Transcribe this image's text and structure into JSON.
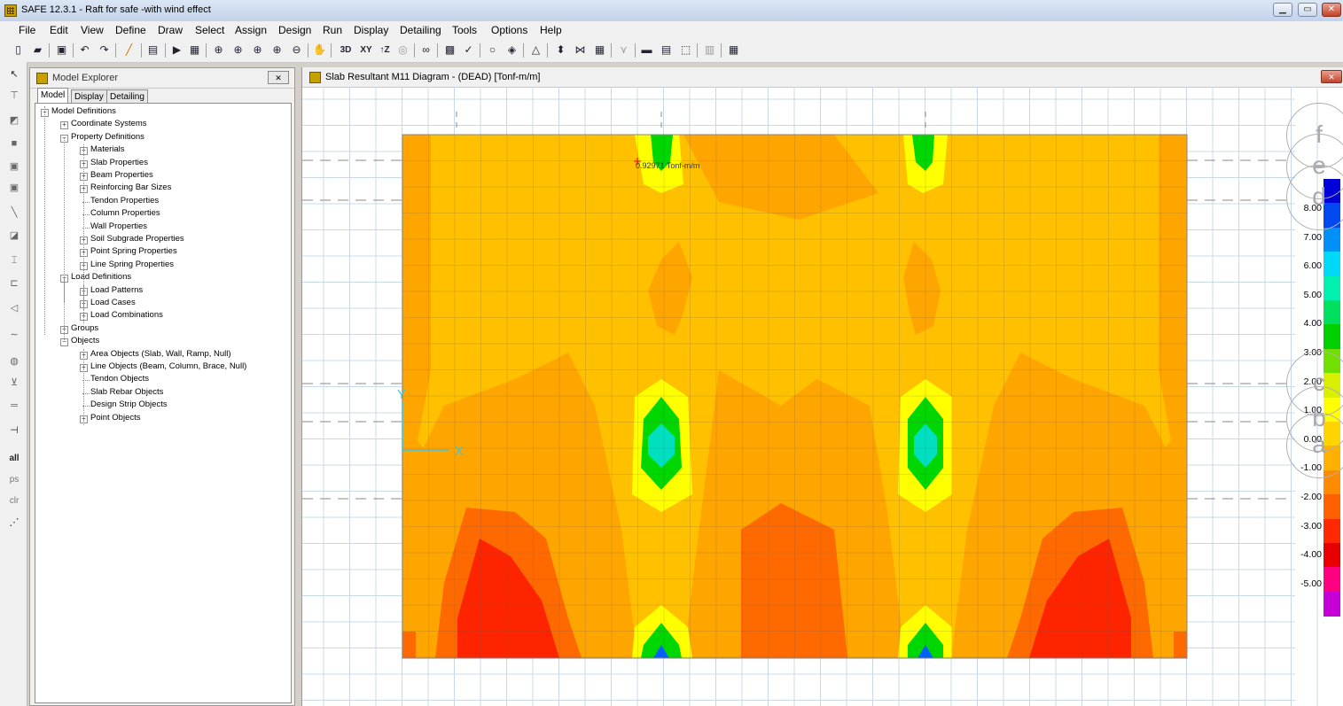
{
  "window": {
    "title": "SAFE 12.3.1 - Raft for safe -with wind effect",
    "minimize": "▁",
    "restore": "▭",
    "close": "✕"
  },
  "menu": [
    "File",
    "Edit",
    "View",
    "Define",
    "Draw",
    "Select",
    "Assign",
    "Design",
    "Run",
    "Display",
    "Detailing",
    "Tools",
    "Options",
    "Help"
  ],
  "toolbar": {
    "btn_3d": "3D",
    "btn_xy": "XY",
    "btn_tz": "↑Z"
  },
  "left_toolbar": {
    "all": "all",
    "ps": "ps",
    "clr": "clr"
  },
  "explorer": {
    "title": "Model Explorer",
    "close": "✕",
    "tabs": [
      "Model",
      "Display",
      "Detailing"
    ],
    "tree": [
      {
        "label": "Model Definitions",
        "level": 0,
        "exp": "−"
      },
      {
        "label": "Coordinate Systems",
        "level": 1,
        "exp": "+"
      },
      {
        "label": "Property Definitions",
        "level": 1,
        "exp": "−"
      },
      {
        "label": "Materials",
        "level": 2,
        "exp": "+"
      },
      {
        "label": "Slab Properties",
        "level": 2,
        "exp": "+"
      },
      {
        "label": "Beam Properties",
        "level": 2,
        "exp": "+"
      },
      {
        "label": "Reinforcing Bar Sizes",
        "level": 2,
        "exp": "+"
      },
      {
        "label": "Tendon Properties",
        "level": 2,
        "exp": ""
      },
      {
        "label": "Column Properties",
        "level": 2,
        "exp": ""
      },
      {
        "label": "Wall Properties",
        "level": 2,
        "exp": ""
      },
      {
        "label": "Soil Subgrade Properties",
        "level": 2,
        "exp": "+"
      },
      {
        "label": "Point Spring Properties",
        "level": 2,
        "exp": "+"
      },
      {
        "label": "Line Spring Properties",
        "level": 2,
        "exp": "+"
      },
      {
        "label": "Load Definitions",
        "level": 1,
        "exp": "−"
      },
      {
        "label": "Load Patterns",
        "level": 2,
        "exp": "+"
      },
      {
        "label": "Load Cases",
        "level": 2,
        "exp": "+"
      },
      {
        "label": "Load Combinations",
        "level": 2,
        "exp": "+"
      },
      {
        "label": "Groups",
        "level": 1,
        "exp": "+"
      },
      {
        "label": "Objects",
        "level": 1,
        "exp": "−"
      },
      {
        "label": "Area Objects (Slab, Wall, Ramp, Null)",
        "level": 2,
        "exp": "+"
      },
      {
        "label": "Line Objects (Beam, Column, Brace, Null)",
        "level": 2,
        "exp": "+"
      },
      {
        "label": "Tendon Objects",
        "level": 2,
        "exp": ""
      },
      {
        "label": "Slab Rebar Objects",
        "level": 2,
        "exp": ""
      },
      {
        "label": "Design Strip Objects",
        "level": 2,
        "exp": ""
      },
      {
        "label": "Point Objects",
        "level": 2,
        "exp": "+"
      }
    ]
  },
  "diagram": {
    "title": "Slab Resultant M11 Diagram - (DEAD)  [Tonf-m/m]",
    "close": "✕",
    "annotation": "0.92971 Tonf-m/m",
    "axis_x": "X",
    "axis_y": "Y",
    "bubbles": [
      "f",
      "e",
      "d",
      "c",
      "b",
      "a"
    ]
  },
  "legend": {
    "labels": [
      "8.00",
      "7.00",
      "6.00",
      "5.00",
      "4.00",
      "3.00",
      "2.00",
      "1.00",
      "0.00",
      "-1.00",
      "-2.00",
      "-3.00",
      "-4.00",
      "-5.00"
    ],
    "colors": [
      "#0000d8",
      "#0048f0",
      "#0090f8",
      "#00d8f8",
      "#00f0b0",
      "#00e060",
      "#00d000",
      "#70e000",
      "#d8f000",
      "#ffff00",
      "#ffd400",
      "#ffb000",
      "#ff8c00",
      "#ff6000",
      "#ff2800",
      "#e80000",
      "#ff0080",
      "#c800d8"
    ]
  },
  "colors": {
    "orange": "#ffa500",
    "light_orange": "#ffc000",
    "red_orange": "#ff6a00",
    "red": "#ff2400",
    "yellow": "#ffff00",
    "green": "#00d600",
    "cyan": "#00e0c0",
    "blue": "#0060ff",
    "grid": "#c8d8e8"
  }
}
